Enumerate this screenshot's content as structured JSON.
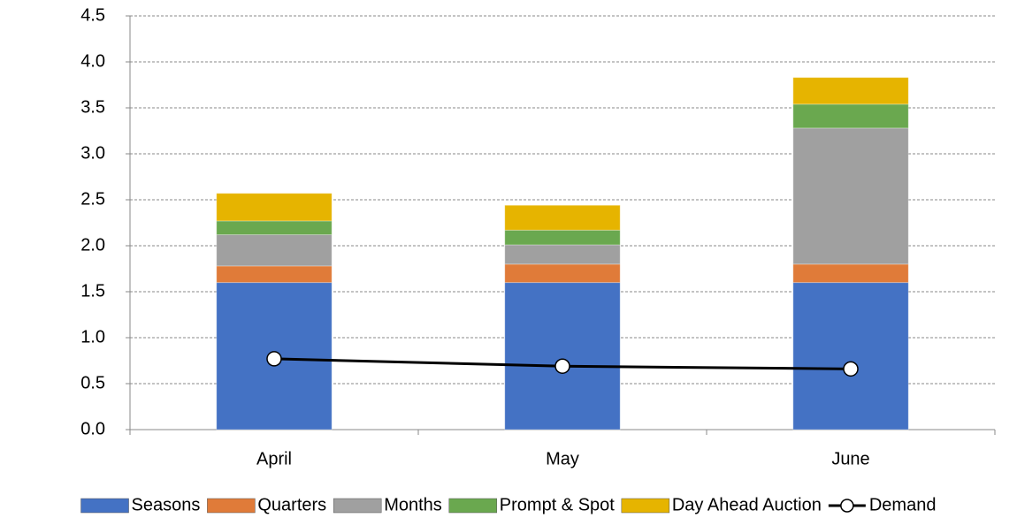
{
  "chart_data": {
    "type": "bar",
    "stacked": true,
    "categories": [
      "April",
      "May",
      "June"
    ],
    "series": [
      {
        "name": "Seasons",
        "color": "#4472c4",
        "values": [
          1.6,
          1.6,
          1.6
        ]
      },
      {
        "name": "Quarters",
        "color": "#e07b39",
        "values": [
          0.18,
          0.2,
          0.2
        ]
      },
      {
        "name": "Months",
        "color": "#a0a0a0",
        "values": [
          0.34,
          0.21,
          1.48
        ]
      },
      {
        "name": "Prompt & Spot",
        "color": "#6aa84f",
        "values": [
          0.15,
          0.16,
          0.26
        ]
      },
      {
        "name": "Day Ahead Auction",
        "color": "#e6b400",
        "values": [
          0.3,
          0.27,
          0.29
        ]
      },
      {
        "name": "Demand",
        "type": "line",
        "color": "#000000",
        "values": [
          0.77,
          0.69,
          0.66
        ]
      }
    ],
    "ylim": [
      0,
      4.5
    ],
    "yticks": [
      {
        "value": 0,
        "label": "0.0"
      },
      0.5,
      {
        "value": 1,
        "label": "1.0"
      },
      1.5,
      {
        "value": 2,
        "label": "2.0"
      },
      2.5,
      {
        "value": 3,
        "label": "3.0"
      },
      3.5,
      {
        "value": 4,
        "label": "4.0"
      },
      4.5
    ],
    "grid": true,
    "legend": "bottom"
  }
}
